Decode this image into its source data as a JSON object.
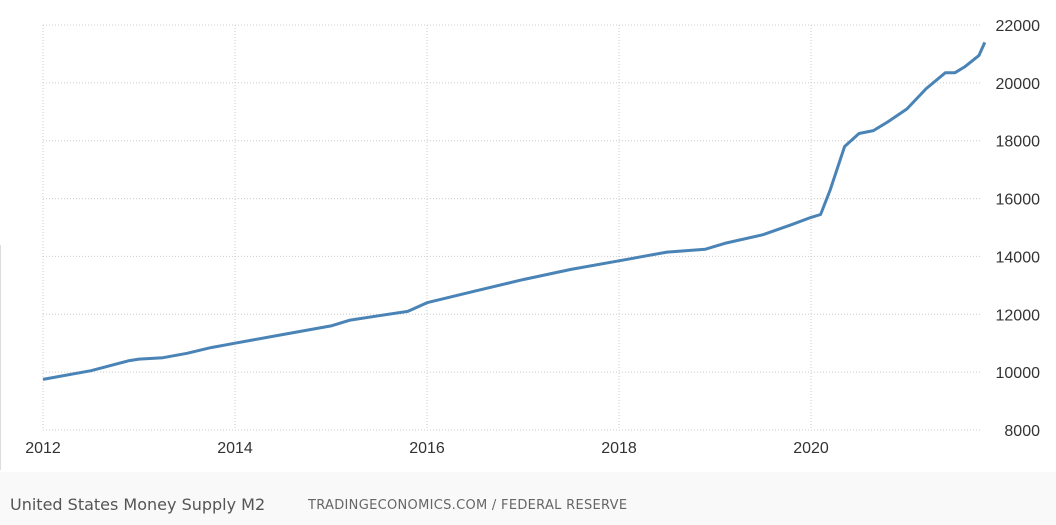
{
  "chart_data": {
    "type": "line",
    "title": "United States Money Supply M2",
    "source": "TRADINGECONOMICS.COM / FEDERAL RESERVE",
    "xlabel": "",
    "ylabel": "",
    "xlim": [
      2012,
      2021.9
    ],
    "ylim": [
      8000,
      22000
    ],
    "x_ticks": [
      2012,
      2014,
      2016,
      2018,
      2020
    ],
    "y_ticks": [
      8000,
      10000,
      12000,
      14000,
      16000,
      18000,
      20000,
      22000
    ],
    "y_axis_position": "right",
    "grid": true,
    "line_color": "#4a83b5",
    "series": [
      {
        "name": "Money Supply M2",
        "points": [
          [
            2012.0,
            9750
          ],
          [
            2012.5,
            10050
          ],
          [
            2012.9,
            10400
          ],
          [
            2013.0,
            10450
          ],
          [
            2013.25,
            10500
          ],
          [
            2013.5,
            10650
          ],
          [
            2013.75,
            10850
          ],
          [
            2014.0,
            11000
          ],
          [
            2014.5,
            11300
          ],
          [
            2015.0,
            11600
          ],
          [
            2015.2,
            11800
          ],
          [
            2015.5,
            11950
          ],
          [
            2015.8,
            12100
          ],
          [
            2016.0,
            12400
          ],
          [
            2016.5,
            12800
          ],
          [
            2017.0,
            13200
          ],
          [
            2017.5,
            13550
          ],
          [
            2018.0,
            13850
          ],
          [
            2018.5,
            14150
          ],
          [
            2018.9,
            14250
          ],
          [
            2019.1,
            14450
          ],
          [
            2019.5,
            14750
          ],
          [
            2019.8,
            15100
          ],
          [
            2020.0,
            15350
          ],
          [
            2020.1,
            15450
          ],
          [
            2020.2,
            16300
          ],
          [
            2020.35,
            17800
          ],
          [
            2020.5,
            18250
          ],
          [
            2020.65,
            18350
          ],
          [
            2020.8,
            18650
          ],
          [
            2021.0,
            19100
          ],
          [
            2021.2,
            19800
          ],
          [
            2021.4,
            20350
          ],
          [
            2021.5,
            20350
          ],
          [
            2021.6,
            20550
          ],
          [
            2021.75,
            20950
          ],
          [
            2021.81,
            21400
          ]
        ]
      }
    ]
  }
}
